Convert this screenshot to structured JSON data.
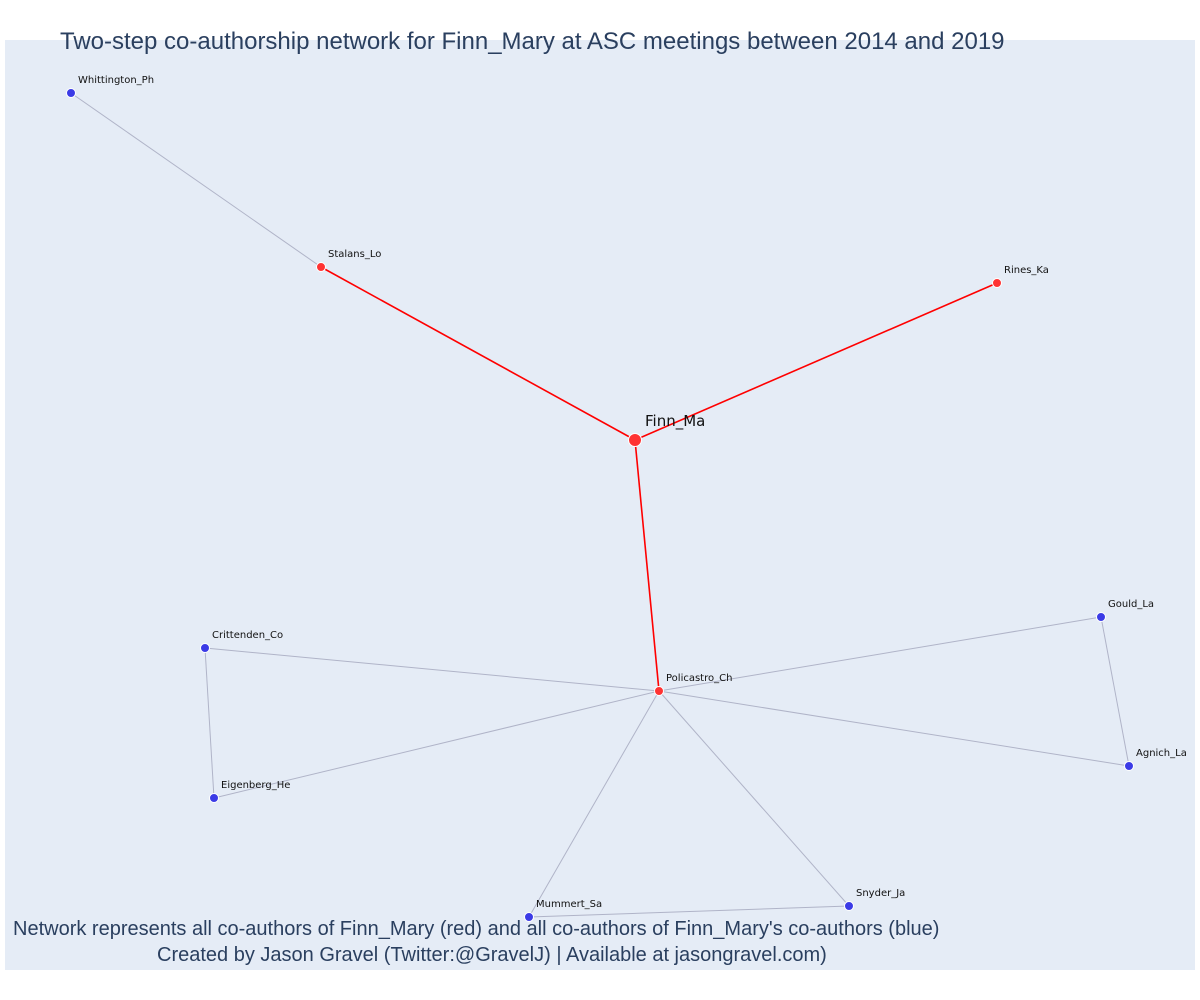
{
  "title": "Two-step co-authorship network for Finn_Mary at ASC meetings between 2014 and 2019",
  "caption": {
    "line1": "Network represents all co-authors of Finn_Mary (red) and all co-authors of Finn_Mary's co-authors (blue)",
    "line2": "Created by Jason Gravel (Twitter:@GravelJ) | Available at jasongravel.com)"
  },
  "colors": {
    "background": "#e5ecf6",
    "ego_edge": "#ff0000",
    "other_edge": "#b0b4c8",
    "coauthor_node": "#ff3333",
    "second_step_node": "#3b3be6",
    "text": "#2a3f5f"
  },
  "nodes": [
    {
      "id": "Finn_Ma",
      "label": "Finn_Ma",
      "group": "ego"
    },
    {
      "id": "Stalans_Lo",
      "label": "Stalans_Lo",
      "group": "coauthor"
    },
    {
      "id": "Rines_Ka",
      "label": "Rines_Ka",
      "group": "coauthor"
    },
    {
      "id": "Policastro_Ch",
      "label": "Policastro_Ch",
      "group": "coauthor"
    },
    {
      "id": "Whittington_Ph",
      "label": "Whittington_Ph",
      "group": "second"
    },
    {
      "id": "Crittenden_Co",
      "label": "Crittenden_Co",
      "group": "second"
    },
    {
      "id": "Eigenberg_He",
      "label": "Eigenberg_He",
      "group": "second"
    },
    {
      "id": "Gould_La",
      "label": "Gould_La",
      "group": "second"
    },
    {
      "id": "Agnich_La",
      "label": "Agnich_La",
      "group": "second"
    },
    {
      "id": "Mummert_Sa",
      "label": "Mummert_Sa",
      "group": "second"
    },
    {
      "id": "Snyder_Ja",
      "label": "Snyder_Ja",
      "group": "second"
    }
  ],
  "edges": [
    {
      "source": "Finn_Ma",
      "target": "Stalans_Lo",
      "type": "ego"
    },
    {
      "source": "Finn_Ma",
      "target": "Rines_Ka",
      "type": "ego"
    },
    {
      "source": "Finn_Ma",
      "target": "Policastro_Ch",
      "type": "ego"
    },
    {
      "source": "Stalans_Lo",
      "target": "Whittington_Ph",
      "type": "other"
    },
    {
      "source": "Policastro_Ch",
      "target": "Crittenden_Co",
      "type": "other"
    },
    {
      "source": "Policastro_Ch",
      "target": "Eigenberg_He",
      "type": "other"
    },
    {
      "source": "Policastro_Ch",
      "target": "Gould_La",
      "type": "other"
    },
    {
      "source": "Policastro_Ch",
      "target": "Agnich_La",
      "type": "other"
    },
    {
      "source": "Policastro_Ch",
      "target": "Mummert_Sa",
      "type": "other"
    },
    {
      "source": "Policastro_Ch",
      "target": "Snyder_Ja",
      "type": "other"
    },
    {
      "source": "Crittenden_Co",
      "target": "Eigenberg_He",
      "type": "other"
    },
    {
      "source": "Gould_La",
      "target": "Agnich_La",
      "type": "other"
    },
    {
      "source": "Mummert_Sa",
      "target": "Snyder_Ja",
      "type": "other"
    }
  ]
}
